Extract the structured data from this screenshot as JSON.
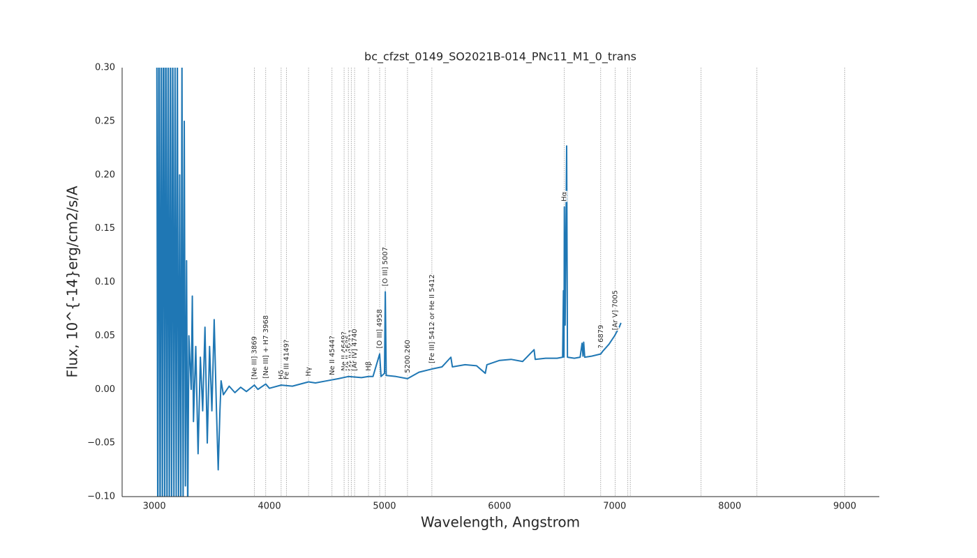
{
  "chart_data": {
    "type": "line",
    "title": "bc_cfzst_0149_SO2021B-014_PNc11_M1_0_trans",
    "xlabel": "Wavelength, Angstrom",
    "ylabel": "Flux, 10^{-14}erg/cm2/s/A",
    "color": "#1f77b4",
    "xlim": [
      2720,
      9300
    ],
    "ylim": [
      -0.1,
      0.3
    ],
    "xticks": [
      3000,
      4000,
      5000,
      6000,
      7000,
      8000,
      9000
    ],
    "yticks": [
      {
        "value": -0.1,
        "label": "−0.10"
      },
      {
        "value": -0.05,
        "label": "−0.05"
      },
      {
        "value": 0,
        "label": "0.00"
      },
      {
        "value": 0.05,
        "label": "0.05"
      },
      {
        "value": 0.1,
        "label": "0.10"
      },
      {
        "value": 0.15,
        "label": "0.15"
      },
      {
        "value": 0.2,
        "label": "0.20"
      },
      {
        "value": 0.25,
        "label": "0.25"
      },
      {
        "value": 0.3,
        "label": "0.30"
      }
    ],
    "x": [
      3020,
      3030,
      3040,
      3050,
      3060,
      3070,
      3080,
      3090,
      3100,
      3110,
      3120,
      3130,
      3140,
      3150,
      3160,
      3170,
      3180,
      3190,
      3200,
      3210,
      3220,
      3230,
      3240,
      3250,
      3260,
      3270,
      3280,
      3290,
      3300,
      3320,
      3330,
      3340,
      3360,
      3380,
      3400,
      3420,
      3440,
      3460,
      3480,
      3500,
      3520,
      3540,
      3555,
      3570,
      3580,
      3600,
      3650,
      3700,
      3750,
      3800,
      3869,
      3900,
      3968,
      4000,
      4102,
      4200,
      4340,
      4400,
      4500,
      4600,
      4686,
      4800,
      4861,
      4900,
      4958,
      4970,
      5000,
      5007,
      5015,
      5100,
      5200,
      5300,
      5412,
      5500,
      5577,
      5590,
      5700,
      5800,
      5876,
      5890,
      6000,
      6100,
      6200,
      6300,
      6310,
      6400,
      6500,
      6548,
      6555,
      6560,
      6563,
      6570,
      6583,
      6590,
      6650,
      6700,
      6717,
      6725,
      6731,
      6740,
      6800,
      6879,
      6900,
      6950,
      7000,
      7040,
      7055
    ],
    "values": [
      0.4,
      -0.15,
      0.4,
      -0.15,
      0.35,
      -0.12,
      0.4,
      -0.14,
      0.38,
      -0.13,
      0.35,
      -0.12,
      0.33,
      -0.12,
      0.34,
      -0.11,
      0.3,
      -0.1,
      0.32,
      -0.12,
      0.2,
      -0.12,
      0.31,
      -0.11,
      0.25,
      -0.09,
      0.12,
      -0.12,
      0.05,
      0.0,
      0.087,
      -0.03,
      0.04,
      -0.06,
      0.03,
      -0.02,
      0.058,
      -0.05,
      0.04,
      -0.02,
      0.065,
      -0.02,
      -0.075,
      -0.02,
      0.008,
      -0.005,
      0.003,
      -0.003,
      0.002,
      -0.002,
      0.004,
      0.0,
      0.005,
      0.001,
      0.004,
      0.003,
      0.007,
      0.006,
      0.008,
      0.01,
      0.012,
      0.011,
      0.012,
      0.012,
      0.033,
      0.012,
      0.015,
      0.091,
      0.013,
      0.012,
      0.01,
      0.016,
      0.019,
      0.021,
      0.03,
      0.021,
      0.023,
      0.022,
      0.015,
      0.023,
      0.027,
      0.028,
      0.026,
      0.037,
      0.028,
      0.029,
      0.029,
      0.03,
      0.092,
      0.03,
      0.17,
      0.06,
      0.227,
      0.03,
      0.029,
      0.03,
      0.043,
      0.031,
      0.044,
      0.03,
      0.031,
      0.033,
      0.036,
      0.042,
      0.05,
      0.058,
      0.062
    ],
    "annotations": [
      {
        "wavelength": 3869,
        "label": "[Ne III] 3869"
      },
      {
        "wavelength": 3968,
        "label": "[Ne III] + H7 3968"
      },
      {
        "wavelength": 4102,
        "label": "Hδ"
      },
      {
        "wavelength": 4149,
        "label": "Fe III 4149?"
      },
      {
        "wavelength": 4340,
        "label": "Hγ"
      },
      {
        "wavelength": 4544,
        "label": "Ne II 4544?"
      },
      {
        "wavelength": 4649,
        "label": "Ne II 4649?"
      },
      {
        "wavelength": 4686,
        "label": "He II 4686"
      },
      {
        "wavelength": 4711,
        "label": "[Ar IV] 4711"
      },
      {
        "wavelength": 4740,
        "label": "[Ar IV] 4740"
      },
      {
        "wavelength": 4861,
        "label": "Hβ"
      },
      {
        "wavelength": 4958,
        "label": "[O III] 4958"
      },
      {
        "wavelength": 5007,
        "label": "[O III] 5007"
      },
      {
        "wavelength": 5200,
        "label": "5200.260"
      },
      {
        "wavelength": 5412,
        "label": "[Fe III] 5412 or He II 5412"
      },
      {
        "wavelength": 6563,
        "label": "Hα"
      },
      {
        "wavelength": 6879,
        "label": "? 6879"
      },
      {
        "wavelength": 7005,
        "label": "[Ar V] 7005"
      }
    ],
    "unlabeled_lines": [
      7115,
      7136,
      7751,
      8237,
      9000
    ]
  }
}
